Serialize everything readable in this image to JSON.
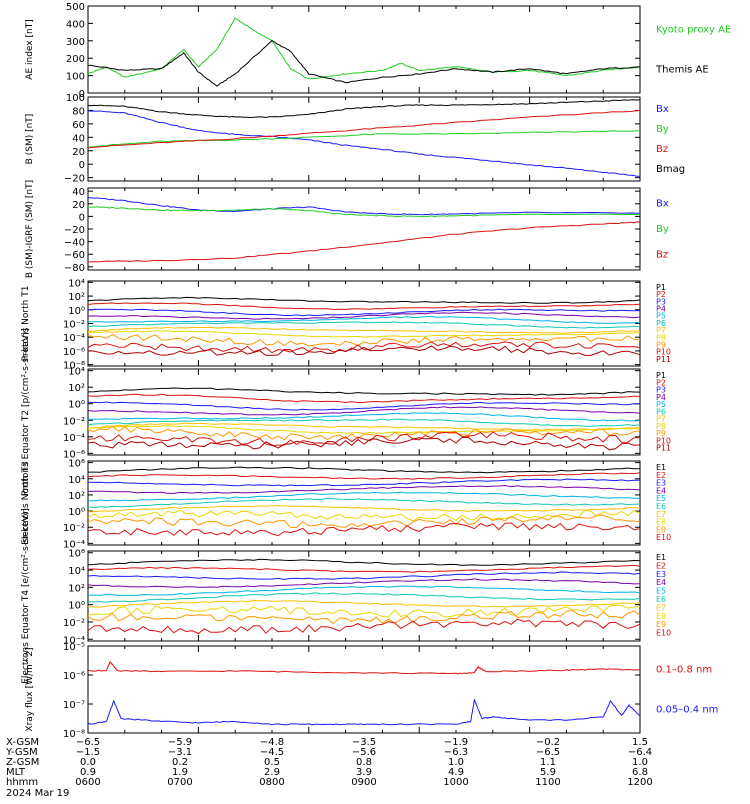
{
  "colors": {
    "black": "#000000",
    "green": "#22cc22",
    "red": "#dd1111",
    "blue": "#1a1aff",
    "purple": "#7a00a8",
    "cyan": "#00b4e6",
    "teal": "#12c8b4",
    "yellow": "#e6d800",
    "orange": "#ff9800",
    "gold": "#ffc000",
    "darkred": "#b00000"
  },
  "chart_data": [
    {
      "type": "line",
      "ylabel": "AE index [nT]",
      "ylim": [
        0,
        500
      ],
      "yticks": [
        0,
        100,
        200,
        300,
        400,
        500
      ],
      "ticklabels": [
        "0",
        "100",
        "200",
        "300",
        "400",
        "500"
      ],
      "legend": [
        "Kyoto proxy AE",
        "Themis AE"
      ],
      "series": [
        {
          "name": "Kyoto proxy AE",
          "color": "green",
          "points": [
            [
              0,
              110
            ],
            [
              0.5,
              150
            ],
            [
              1,
              90
            ],
            [
              2,
              140
            ],
            [
              2.6,
              250
            ],
            [
              3,
              150
            ],
            [
              3.5,
              250
            ],
            [
              4,
              430
            ],
            [
              4.5,
              360
            ],
            [
              5,
              300
            ],
            [
              5.5,
              140
            ],
            [
              6,
              80
            ],
            [
              7,
              110
            ],
            [
              8,
              130
            ],
            [
              8.5,
              170
            ],
            [
              9,
              130
            ],
            [
              10,
              150
            ],
            [
              11,
              120
            ],
            [
              12,
              130
            ],
            [
              13,
              100
            ],
            [
              14,
              130
            ],
            [
              15,
              150
            ]
          ]
        },
        {
          "name": "Themis AE",
          "color": "black",
          "points": [
            [
              0,
              160
            ],
            [
              1,
              130
            ],
            [
              2,
              140
            ],
            [
              2.6,
              230
            ],
            [
              3,
              120
            ],
            [
              3.5,
              40
            ],
            [
              4,
              110
            ],
            [
              5,
              300
            ],
            [
              5.5,
              240
            ],
            [
              6,
              110
            ],
            [
              7,
              60
            ],
            [
              8,
              90
            ],
            [
              9,
              110
            ],
            [
              10,
              140
            ],
            [
              11,
              120
            ],
            [
              12,
              140
            ],
            [
              13,
              110
            ],
            [
              14,
              140
            ],
            [
              15,
              150
            ]
          ]
        }
      ]
    },
    {
      "type": "line",
      "ylabel": "B (SM) [nT]",
      "ylim": [
        -25,
        100
      ],
      "yticks": [
        -20,
        0,
        20,
        40,
        60,
        80,
        100
      ],
      "ticklabels": [
        "−20",
        "0",
        "20",
        "40",
        "60",
        "80",
        "100"
      ],
      "legend": [
        "Bx",
        "By",
        "Bz",
        "Bmag"
      ],
      "series": [
        {
          "name": "Bx",
          "color": "blue",
          "points": [
            [
              0,
              80
            ],
            [
              1,
              76
            ],
            [
              2,
              62
            ],
            [
              3,
              50
            ],
            [
              4,
              44
            ],
            [
              5,
              41
            ],
            [
              6,
              36
            ],
            [
              7,
              28
            ],
            [
              8,
              22
            ],
            [
              9,
              15
            ],
            [
              10,
              10
            ],
            [
              11,
              5
            ],
            [
              12,
              -1
            ],
            [
              13,
              -6
            ],
            [
              14,
              -12
            ],
            [
              15,
              -18
            ]
          ]
        },
        {
          "name": "By",
          "color": "green",
          "points": [
            [
              0,
              26
            ],
            [
              2,
              34
            ],
            [
              4,
              36
            ],
            [
              6,
              40
            ],
            [
              8,
              45
            ],
            [
              10,
              45
            ],
            [
              12,
              47
            ],
            [
              15,
              50
            ]
          ]
        },
        {
          "name": "Bz",
          "color": "red",
          "points": [
            [
              0,
              25
            ],
            [
              2,
              32
            ],
            [
              4,
              38
            ],
            [
              6,
              46
            ],
            [
              8,
              54
            ],
            [
              10,
              62
            ],
            [
              12,
              70
            ],
            [
              15,
              80
            ]
          ]
        },
        {
          "name": "Bmag",
          "color": "black",
          "points": [
            [
              0,
              88
            ],
            [
              1,
              86
            ],
            [
              2,
              78
            ],
            [
              3,
              73
            ],
            [
              4,
              70
            ],
            [
              5,
              70
            ],
            [
              6,
              74
            ],
            [
              7,
              82
            ],
            [
              8,
              86
            ],
            [
              9,
              88
            ],
            [
              10,
              88
            ],
            [
              11,
              89
            ],
            [
              12,
              90
            ],
            [
              13,
              92
            ],
            [
              14,
              94
            ],
            [
              15,
              96
            ]
          ]
        }
      ]
    },
    {
      "type": "line",
      "ylabel": "B (SM)-IGRF (SM) [nT]",
      "ylim": [
        -85,
        45
      ],
      "yticks": [
        -80,
        -60,
        -40,
        -20,
        0,
        20,
        40
      ],
      "ticklabels": [
        "−80",
        "−60",
        "−40",
        "−20",
        "0",
        "20",
        "40"
      ],
      "legend": [
        "Bx",
        "By",
        "Bz"
      ],
      "series": [
        {
          "name": "Bx",
          "color": "blue",
          "points": [
            [
              0,
              30
            ],
            [
              1,
              25
            ],
            [
              2,
              17
            ],
            [
              3,
              10
            ],
            [
              4,
              8
            ],
            [
              5,
              12
            ],
            [
              6,
              15
            ],
            [
              7,
              7
            ],
            [
              8,
              4
            ],
            [
              9,
              3
            ],
            [
              10,
              4
            ],
            [
              12,
              6
            ],
            [
              15,
              5
            ]
          ]
        },
        {
          "name": "By",
          "color": "green",
          "points": [
            [
              0,
              15
            ],
            [
              1,
              13
            ],
            [
              2,
              10
            ],
            [
              3,
              9
            ],
            [
              4,
              10
            ],
            [
              5,
              12
            ],
            [
              6,
              9
            ],
            [
              7,
              3
            ],
            [
              8,
              1
            ],
            [
              9,
              0
            ],
            [
              10,
              1
            ],
            [
              12,
              3
            ],
            [
              15,
              3
            ]
          ]
        },
        {
          "name": "Bz",
          "color": "red",
          "points": [
            [
              0,
              -72
            ],
            [
              2,
              -70
            ],
            [
              4,
              -66
            ],
            [
              6,
              -55
            ],
            [
              8,
              -42
            ],
            [
              10,
              -28
            ],
            [
              12,
              -18
            ],
            [
              14,
              -12
            ],
            [
              15,
              -9
            ]
          ]
        }
      ]
    },
    {
      "type": "line",
      "ylabel": "Protons North T1",
      "log": true,
      "ylim": [
        -8.2,
        4.2
      ],
      "yticks": [
        -8,
        -6,
        -4,
        -2,
        0,
        2,
        4
      ],
      "ticklabels": [
        "10⁻⁸",
        "10⁻⁶",
        "10⁻⁴",
        "10⁻²",
        "10⁰",
        "10²",
        "10⁴"
      ],
      "legend": [
        "P1",
        "P2",
        "P3",
        "P4",
        "P5",
        "P6",
        "P7",
        "P8",
        "P9",
        "P10",
        "P11"
      ],
      "channel_levels": [
        1.3,
        0.5,
        -0.3,
        -0.9,
        -1.5,
        -2.1,
        -3.0,
        -3.6,
        -4.4,
        -5.4,
        -6.0
      ]
    },
    {
      "type": "line",
      "ylabel": "Protons Equator T2 [p/(cm²-s-sr-keV)]",
      "log": true,
      "ylim": [
        -6.2,
        4.2
      ],
      "yticks": [
        -6,
        -4,
        -2,
        0,
        2,
        4
      ],
      "ticklabels": [
        "10⁻⁶",
        "10⁻⁴",
        "10⁻²",
        "10⁰",
        "10²",
        "10⁴"
      ],
      "legend": [
        "P1",
        "P2",
        "P3",
        "P4",
        "P5",
        "P6",
        "P7",
        "P8",
        "P9",
        "P10",
        "P11"
      ],
      "channel_levels": [
        1.4,
        0.6,
        -0.2,
        -0.9,
        -1.6,
        -2.2,
        -2.8,
        -3.2,
        -3.6,
        -4.2,
        -4.8
      ]
    },
    {
      "type": "line",
      "ylabel": "Electrons North T3",
      "log": true,
      "ylim": [
        -4.2,
        6.2
      ],
      "yticks": [
        -4,
        -2,
        0,
        2,
        4,
        6
      ],
      "ticklabels": [
        "10⁻⁴",
        "10⁻²",
        "10⁰",
        "10²",
        "10⁴",
        "10⁶"
      ],
      "legend": [
        "E1",
        "E2",
        "E3",
        "E4",
        "E5",
        "E6",
        "E7",
        "E8",
        "E9",
        "E10"
      ],
      "channel_levels": [
        4.8,
        4.0,
        3.2,
        2.4,
        1.6,
        0.8,
        0.0,
        -0.8,
        -1.6,
        -2.6
      ]
    },
    {
      "type": "line",
      "ylabel": "Electrons Equator T4 [e/(cm²-s-sr-keV)]",
      "log": true,
      "ylim": [
        -4.2,
        6.2
      ],
      "yticks": [
        -4,
        -2,
        0,
        2,
        4,
        6
      ],
      "ticklabels": [
        "10⁻⁴",
        "10⁻²",
        "10⁰",
        "10²",
        "10⁴",
        "10⁶"
      ],
      "legend": [
        "E1",
        "E2",
        "E3",
        "E4",
        "E5",
        "E6",
        "E7",
        "E8",
        "E9",
        "E10"
      ],
      "channel_levels": [
        4.6,
        3.8,
        3.0,
        2.2,
        1.4,
        0.6,
        -0.2,
        -1.0,
        -1.8,
        -2.8
      ]
    },
    {
      "type": "line",
      "ylabel": "Xray flux [W/m^2]",
      "log": true,
      "ylim": [
        -8,
        -5
      ],
      "yticks": [
        -8,
        -7,
        -6,
        -5
      ],
      "ticklabels": [
        "10⁻⁸",
        "10⁻⁷",
        "10⁻⁶",
        "10⁻⁵"
      ],
      "legend": [
        "0.1–0.8 nm",
        "0.05–0.4 nm"
      ],
      "series": [
        {
          "name": "0.1–0.8 nm",
          "color": "red",
          "points": [
            [
              0,
              -5.85
            ],
            [
              0.5,
              -5.85
            ],
            [
              0.6,
              -5.55
            ],
            [
              0.8,
              -5.85
            ],
            [
              2,
              -5.88
            ],
            [
              4,
              -5.86
            ],
            [
              6,
              -5.9
            ],
            [
              8,
              -5.93
            ],
            [
              10,
              -5.95
            ],
            [
              10.5,
              -5.92
            ],
            [
              10.6,
              -5.72
            ],
            [
              10.8,
              -5.88
            ],
            [
              12,
              -5.86
            ],
            [
              13,
              -5.83
            ],
            [
              14,
              -5.8
            ],
            [
              15,
              -5.82
            ]
          ]
        },
        {
          "name": "0.05–0.4 nm",
          "color": "blue",
          "points": [
            [
              0,
              -7.7
            ],
            [
              0.5,
              -7.6
            ],
            [
              0.7,
              -6.9
            ],
            [
              0.9,
              -7.5
            ],
            [
              2,
              -7.6
            ],
            [
              3,
              -7.65
            ],
            [
              4,
              -7.6
            ],
            [
              5,
              -7.7
            ],
            [
              6,
              -7.7
            ],
            [
              7,
              -7.7
            ],
            [
              8,
              -7.7
            ],
            [
              10,
              -7.7
            ],
            [
              10.4,
              -7.6
            ],
            [
              10.5,
              -6.85
            ],
            [
              10.7,
              -7.5
            ],
            [
              11,
              -7.45
            ],
            [
              12,
              -7.55
            ],
            [
              13,
              -7.55
            ],
            [
              14,
              -7.45
            ],
            [
              14.2,
              -6.9
            ],
            [
              14.5,
              -7.4
            ],
            [
              14.7,
              -7.05
            ],
            [
              15,
              -7.4
            ]
          ]
        }
      ]
    }
  ],
  "ephemeris": {
    "rows": [
      {
        "label": "X-GSM",
        "values": [
          "−6.5",
          "−5.9",
          "−4.8",
          "−3.5",
          "−1.9",
          "−0.2",
          "1.5"
        ]
      },
      {
        "label": "Y-GSM",
        "values": [
          "−1.5",
          "−3.1",
          "−4.5",
          "−5.6",
          "−6.3",
          "−6.5",
          "−6.4"
        ]
      },
      {
        "label": "Z-GSM",
        "values": [
          "0.0",
          "0.2",
          "0.5",
          "0.8",
          "1.0",
          "1.1",
          "1.0"
        ]
      },
      {
        "label": "MLT",
        "values": [
          "0.9",
          "1.9",
          "2.9",
          "3.9",
          "4.9",
          "5.9",
          "6.8"
        ]
      },
      {
        "label": "hhmm",
        "values": [
          "0600",
          "0700",
          "0800",
          "0900",
          "1000",
          "1100",
          "1200"
        ]
      }
    ],
    "date": "2024 Mar 19"
  }
}
